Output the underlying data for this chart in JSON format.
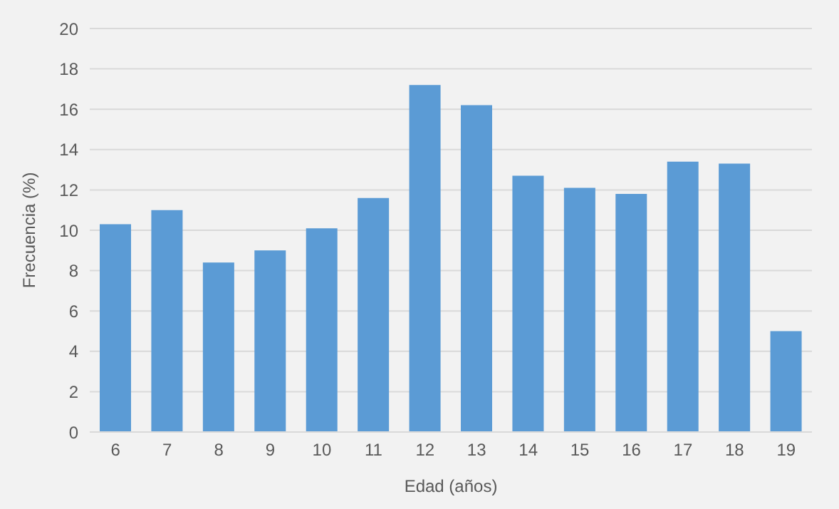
{
  "chart_data": {
    "type": "bar",
    "xlabel": "Edad (años)",
    "ylabel": "Frecuencia  (%)",
    "categories": [
      "6",
      "7",
      "8",
      "9",
      "10",
      "11",
      "12",
      "13",
      "14",
      "15",
      "16",
      "17",
      "18",
      "19"
    ],
    "values": [
      10.3,
      11.0,
      8.4,
      9.0,
      10.1,
      11.6,
      17.2,
      16.2,
      12.7,
      12.1,
      11.8,
      13.4,
      13.3,
      5.0
    ],
    "color": "#5b9bd5",
    "ylim": [
      0,
      20
    ],
    "yticks": [
      0,
      2,
      4,
      6,
      8,
      10,
      12,
      14,
      16,
      18,
      20
    ],
    "grid": "y"
  }
}
